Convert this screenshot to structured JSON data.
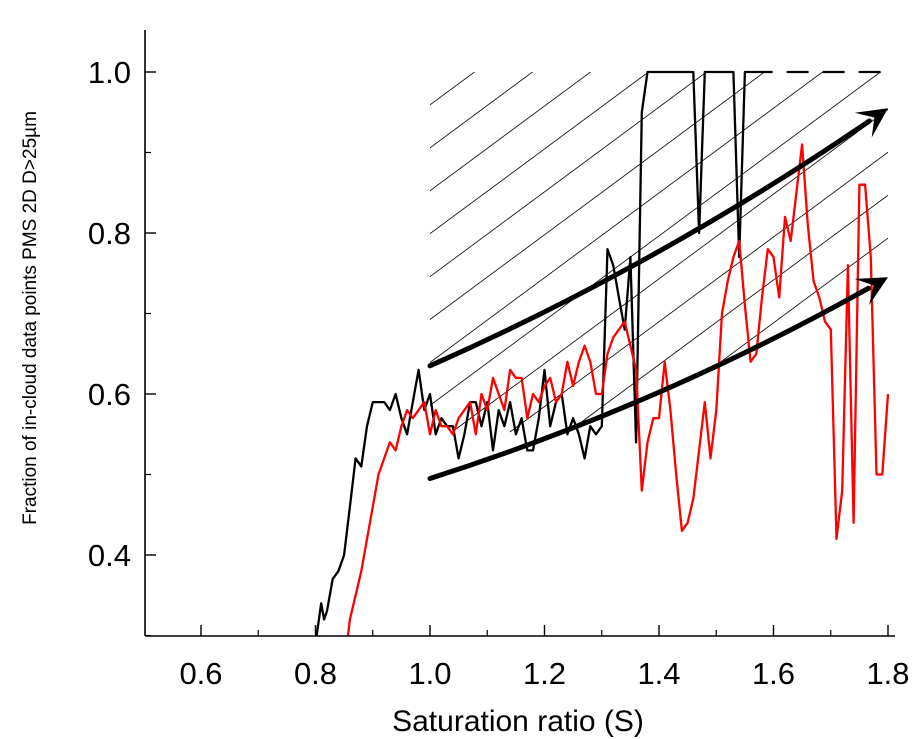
{
  "chart_data": {
    "type": "line",
    "title": "",
    "xlabel": "Saturation ratio (S)",
    "ylabel": "Fraction of in-cloud data points PMS 2D D>25µm",
    "xlim": [
      0.5,
      1.8
    ],
    "ylim": [
      0.3,
      1.05
    ],
    "x_ticks": [
      0.6,
      0.8,
      1.0,
      1.2,
      1.4,
      1.6,
      1.8
    ],
    "x_tick_labels": [
      "0.6",
      "0.8",
      "1.0",
      "1.2",
      "1.4",
      "1.6",
      "1.8"
    ],
    "y_ticks": [
      0.4,
      0.6,
      0.8,
      1.0
    ],
    "y_tick_labels": [
      "0.4",
      "0.6",
      "0.8",
      "1.0"
    ],
    "grid": false,
    "colors": {
      "series_black": "#000000",
      "series_red": "#ff0000",
      "hatch": "#000000",
      "arrow": "#000000"
    },
    "series": [
      {
        "color": "#000000",
        "x": [
          0.8,
          0.81,
          0.815,
          0.82,
          0.83,
          0.84,
          0.85,
          0.86,
          0.87,
          0.88,
          0.89,
          0.9,
          0.91,
          0.92,
          0.93,
          0.94,
          0.95,
          0.96,
          0.97,
          0.98,
          0.99,
          1.0,
          1.01,
          1.02,
          1.03,
          1.04,
          1.05,
          1.06,
          1.07,
          1.08,
          1.09,
          1.1,
          1.11,
          1.12,
          1.13,
          1.14,
          1.15,
          1.16,
          1.17,
          1.18,
          1.19,
          1.2,
          1.21,
          1.22,
          1.23,
          1.24,
          1.25,
          1.26,
          1.27,
          1.28,
          1.29,
          1.3,
          1.31,
          1.32,
          1.33,
          1.34,
          1.35,
          1.36,
          1.37,
          1.38,
          1.39,
          1.4,
          1.41,
          1.42,
          1.43,
          1.44,
          1.45,
          1.46,
          1.47,
          1.48,
          1.49,
          1.5,
          1.51,
          1.52,
          1.53,
          1.54,
          1.55,
          1.56
        ],
        "values": [
          0.29,
          0.34,
          0.32,
          0.33,
          0.37,
          0.38,
          0.4,
          0.46,
          0.52,
          0.51,
          0.56,
          0.59,
          0.59,
          0.59,
          0.58,
          0.6,
          0.57,
          0.55,
          0.59,
          0.63,
          0.58,
          0.6,
          0.55,
          0.57,
          0.56,
          0.56,
          0.52,
          0.55,
          0.59,
          0.59,
          0.56,
          0.59,
          0.53,
          0.58,
          0.56,
          0.59,
          0.55,
          0.57,
          0.53,
          0.53,
          0.57,
          0.63,
          0.56,
          0.59,
          0.6,
          0.55,
          0.57,
          0.55,
          0.52,
          0.56,
          0.55,
          0.56,
          0.78,
          0.76,
          0.72,
          0.68,
          0.77,
          0.54,
          0.95,
          1.0,
          1.0,
          1.0,
          1.0,
          1.0,
          1.0,
          1.0,
          1.0,
          1.0,
          0.8,
          1.0,
          1.0,
          1.0,
          1.0,
          1.0,
          1.0,
          0.77,
          1.0,
          1.0
        ]
      },
      {
        "color": "#000000",
        "line_style": "dashed",
        "x": [
          1.56,
          1.8
        ],
        "values": [
          1.0,
          1.0
        ]
      },
      {
        "color": "#ff0000",
        "x": [
          0.855,
          0.86,
          0.87,
          0.88,
          0.89,
          0.9,
          0.91,
          0.92,
          0.93,
          0.94,
          0.95,
          0.96,
          0.97,
          0.98,
          0.99,
          1.0,
          1.01,
          1.02,
          1.03,
          1.04,
          1.05,
          1.06,
          1.07,
          1.08,
          1.09,
          1.1,
          1.11,
          1.12,
          1.13,
          1.14,
          1.15,
          1.16,
          1.17,
          1.18,
          1.19,
          1.2,
          1.21,
          1.22,
          1.23,
          1.24,
          1.25,
          1.26,
          1.27,
          1.28,
          1.29,
          1.3,
          1.31,
          1.32,
          1.33,
          1.34,
          1.35,
          1.36,
          1.37,
          1.38,
          1.39,
          1.4,
          1.41,
          1.42,
          1.43,
          1.44,
          1.45,
          1.46,
          1.47,
          1.48,
          1.49,
          1.5,
          1.51,
          1.52,
          1.53,
          1.54,
          1.55,
          1.56,
          1.57,
          1.58,
          1.59,
          1.6,
          1.61,
          1.62,
          1.63,
          1.64,
          1.65,
          1.66,
          1.67,
          1.68,
          1.69,
          1.7,
          1.71,
          1.72,
          1.73,
          1.74,
          1.75,
          1.76,
          1.77,
          1.78,
          1.79,
          1.8
        ],
        "values": [
          0.29,
          0.32,
          0.35,
          0.38,
          0.42,
          0.46,
          0.5,
          0.52,
          0.54,
          0.53,
          0.56,
          0.58,
          0.57,
          0.58,
          0.59,
          0.55,
          0.58,
          0.56,
          0.56,
          0.55,
          0.57,
          0.58,
          0.59,
          0.55,
          0.6,
          0.58,
          0.62,
          0.6,
          0.58,
          0.63,
          0.62,
          0.62,
          0.57,
          0.6,
          0.59,
          0.61,
          0.62,
          0.59,
          0.6,
          0.64,
          0.61,
          0.64,
          0.66,
          0.64,
          0.6,
          0.6,
          0.65,
          0.67,
          0.68,
          0.69,
          0.66,
          0.63,
          0.48,
          0.54,
          0.57,
          0.57,
          0.64,
          0.58,
          0.5,
          0.43,
          0.44,
          0.47,
          0.53,
          0.59,
          0.52,
          0.58,
          0.7,
          0.74,
          0.77,
          0.79,
          0.71,
          0.64,
          0.65,
          0.72,
          0.78,
          0.77,
          0.72,
          0.82,
          0.79,
          0.85,
          0.91,
          0.81,
          0.74,
          0.72,
          0.69,
          0.68,
          0.42,
          0.48,
          0.76,
          0.44,
          0.86,
          0.86,
          0.77,
          0.5,
          0.5,
          0.6
        ]
      }
    ],
    "arrows": [
      {
        "x": [
          1.0,
          1.8
        ],
        "values": [
          0.635,
          0.955
        ]
      },
      {
        "x": [
          1.0,
          1.8
        ],
        "values": [
          0.495,
          0.745
        ]
      }
    ],
    "hatched_region": {
      "x_from": 1.0,
      "x_to": 1.8,
      "upper": 1.0,
      "lower_follows_arrow": 2
    }
  }
}
